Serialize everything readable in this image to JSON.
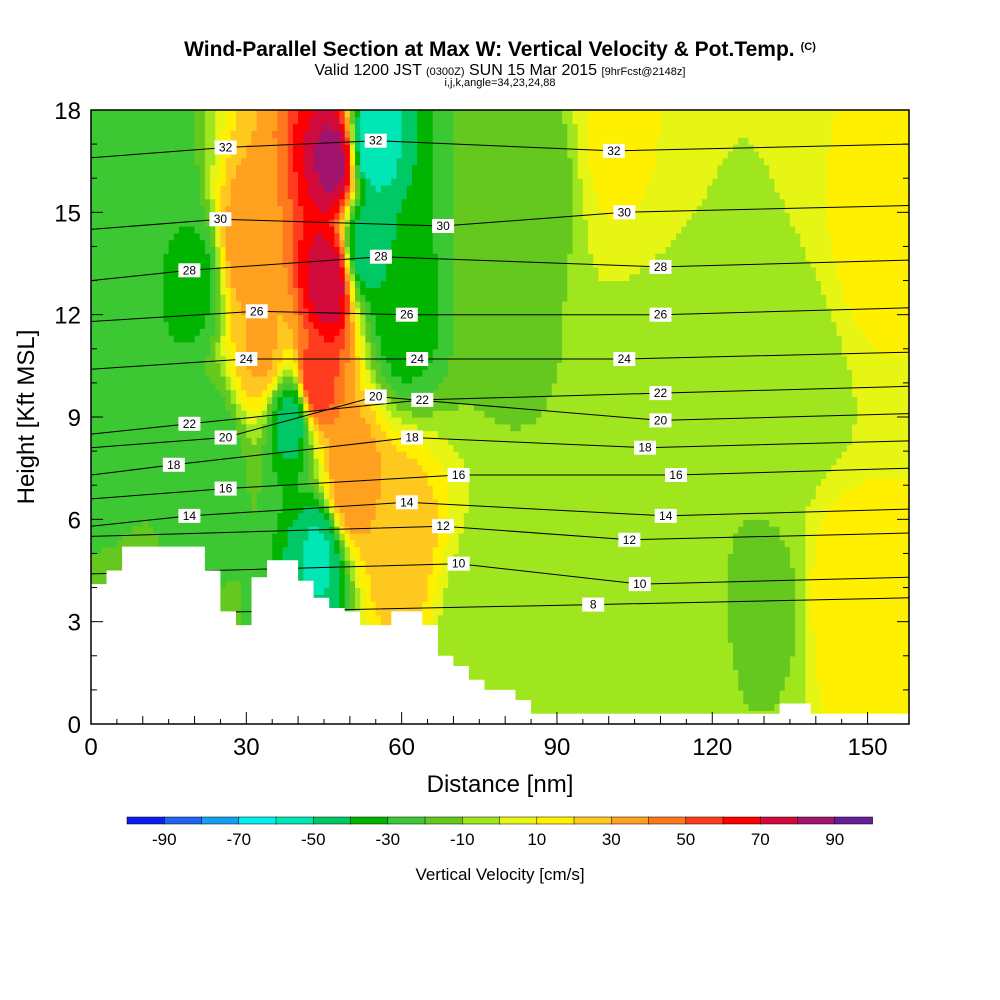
{
  "header": {
    "title": "Wind-Parallel Section at Max W: Vertical Velocity & Pot.Temp.",
    "copyright": "(C)",
    "valid_prefix": "Valid 1200 JST",
    "valid_utc": "(0300Z)",
    "valid_date": "SUN 15 Mar 2015",
    "forecast": "[9hrFcst@2148z]",
    "indices": "i,j,k,angle=34,23,24,88"
  },
  "chart_data": {
    "type": "heatmap",
    "xlabel": "Distance [nm]",
    "ylabel": "Height [Kft MSL]",
    "xlim": [
      0,
      158
    ],
    "ylim": [
      0,
      18
    ],
    "x_ticks": [
      0,
      30,
      60,
      90,
      120,
      150
    ],
    "y_ticks": [
      0,
      3,
      6,
      9,
      12,
      15,
      18
    ],
    "colorbar": {
      "label": "Vertical Velocity [cm/s]",
      "tick_labels": [
        "-90",
        "-70",
        "-50",
        "-30",
        "-10",
        "10",
        "30",
        "50",
        "70",
        "90"
      ],
      "levels": [
        -100,
        -90,
        -80,
        -70,
        -60,
        -50,
        -40,
        -30,
        -20,
        -10,
        0,
        10,
        20,
        30,
        40,
        50,
        60,
        70,
        80,
        90,
        100
      ],
      "colors": [
        "#0a1ef0",
        "#1e64f0",
        "#14a0f0",
        "#00f0f0",
        "#00e6b4",
        "#00c864",
        "#00b400",
        "#3cc832",
        "#64c81e",
        "#a0e61e",
        "#e6f514",
        "#fff000",
        "#ffc81e",
        "#ffa01e",
        "#ff781e",
        "#ff3c1e",
        "#ff0000",
        "#d20a3c",
        "#a0146e",
        "#641e96"
      ]
    },
    "velocity_features": [
      {
        "x": 46,
        "y": 13,
        "value": 80
      },
      {
        "x": 47,
        "y": 16.5,
        "value": 85
      },
      {
        "x": 43,
        "y": 10,
        "value": 60
      },
      {
        "x": 50,
        "y": 7,
        "value": 40
      },
      {
        "x": 59,
        "y": 5.5,
        "value": 28
      },
      {
        "x": 30,
        "y": 14,
        "value": 38
      },
      {
        "x": 33,
        "y": 11,
        "value": 32
      },
      {
        "x": 100,
        "y": 17,
        "value": 12
      },
      {
        "x": 150,
        "y": 14,
        "value": 12
      },
      {
        "x": 145,
        "y": 3.5,
        "value": 18
      },
      {
        "x": 54,
        "y": 17,
        "value": -60
      },
      {
        "x": 53,
        "y": 14,
        "value": -50
      },
      {
        "x": 39,
        "y": 9,
        "value": -48
      },
      {
        "x": 44,
        "y": 5,
        "value": -52
      },
      {
        "x": 60,
        "y": 12,
        "value": -36
      },
      {
        "x": 20,
        "y": 13,
        "value": -34
      },
      {
        "x": 24,
        "y": 8,
        "value": -26
      },
      {
        "x": 3,
        "y": 10,
        "value": -22
      },
      {
        "x": 13,
        "y": 16,
        "value": -28
      },
      {
        "x": 88,
        "y": 16,
        "value": -14
      },
      {
        "x": 80,
        "y": 12.5,
        "value": -12
      },
      {
        "x": 108,
        "y": 9,
        "value": -10
      },
      {
        "x": 137,
        "y": 10,
        "value": -8
      },
      {
        "x": 132,
        "y": 3.3,
        "value": -12
      },
      {
        "x": 114,
        "y": 1,
        "value": -8
      },
      {
        "x": 90,
        "y": 1.5,
        "value": -6
      },
      {
        "x": 75,
        "y": 2.5,
        "value": -8
      }
    ],
    "isentrope_labels": [
      {
        "text": "32",
        "x": 26,
        "y": 16.9
      },
      {
        "text": "30",
        "x": 25,
        "y": 14.8
      },
      {
        "text": "28",
        "x": 19,
        "y": 13.3
      },
      {
        "text": "26",
        "x": 32,
        "y": 12.1
      },
      {
        "text": "24",
        "x": 30,
        "y": 10.7
      },
      {
        "text": "22",
        "x": 19,
        "y": 8.8
      },
      {
        "text": "20",
        "x": 26,
        "y": 8.4
      },
      {
        "text": "18",
        "x": 16,
        "y": 7.6
      },
      {
        "text": "16",
        "x": 26,
        "y": 6.9
      },
      {
        "text": "14",
        "x": 19,
        "y": 6.1
      },
      {
        "text": "32",
        "x": 55,
        "y": 17.1
      },
      {
        "text": "28",
        "x": 56,
        "y": 13.7
      },
      {
        "text": "26",
        "x": 61,
        "y": 12.0
      },
      {
        "text": "24",
        "x": 63,
        "y": 10.7
      },
      {
        "text": "22",
        "x": 64,
        "y": 9.5
      },
      {
        "text": "20",
        "x": 55,
        "y": 9.6
      },
      {
        "text": "18",
        "x": 62,
        "y": 8.4
      },
      {
        "text": "30",
        "x": 68,
        "y": 14.6
      },
      {
        "text": "16",
        "x": 71,
        "y": 7.3
      },
      {
        "text": "14",
        "x": 61,
        "y": 6.5
      },
      {
        "text": "12",
        "x": 68,
        "y": 5.8
      },
      {
        "text": "10",
        "x": 71,
        "y": 4.7
      },
      {
        "text": "32",
        "x": 101,
        "y": 16.8
      },
      {
        "text": "30",
        "x": 103,
        "y": 15.0
      },
      {
        "text": "28",
        "x": 110,
        "y": 13.4
      },
      {
        "text": "26",
        "x": 110,
        "y": 12.0
      },
      {
        "text": "24",
        "x": 103,
        "y": 10.7
      },
      {
        "text": "22",
        "x": 110,
        "y": 9.7
      },
      {
        "text": "20",
        "x": 110,
        "y": 8.9
      },
      {
        "text": "18",
        "x": 107,
        "y": 8.1
      },
      {
        "text": "16",
        "x": 113,
        "y": 7.3
      },
      {
        "text": "14",
        "x": 111,
        "y": 6.1
      },
      {
        "text": "12",
        "x": 104,
        "y": 5.4
      },
      {
        "text": "10",
        "x": 106,
        "y": 4.1
      },
      {
        "text": "8",
        "x": 97,
        "y": 3.5
      }
    ],
    "terrain_profile": [
      [
        0,
        4.1
      ],
      [
        3,
        4.1
      ],
      [
        3,
        4.5
      ],
      [
        6,
        4.5
      ],
      [
        6,
        5.2
      ],
      [
        22,
        5.2
      ],
      [
        22,
        4.5
      ],
      [
        25,
        4.5
      ],
      [
        25,
        3.3
      ],
      [
        28,
        3.3
      ],
      [
        28,
        2.9
      ],
      [
        31,
        2.9
      ],
      [
        31,
        4.3
      ],
      [
        34,
        4.3
      ],
      [
        34,
        4.8
      ],
      [
        40,
        4.8
      ],
      [
        40,
        4.2
      ],
      [
        43,
        4.2
      ],
      [
        43,
        3.7
      ],
      [
        46,
        3.7
      ],
      [
        46,
        3.4
      ],
      [
        49,
        3.4
      ],
      [
        49,
        3.3
      ],
      [
        52,
        3.3
      ],
      [
        52,
        2.9
      ],
      [
        58,
        2.9
      ],
      [
        58,
        3.3
      ],
      [
        64,
        3.3
      ],
      [
        64,
        2.9
      ],
      [
        67,
        2.9
      ],
      [
        67,
        2.0
      ],
      [
        70,
        2.0
      ],
      [
        70,
        1.7
      ],
      [
        73,
        1.7
      ],
      [
        73,
        1.3
      ],
      [
        76,
        1.3
      ],
      [
        76,
        1.0
      ],
      [
        82,
        1.0
      ],
      [
        82,
        0.7
      ],
      [
        85,
        0.7
      ],
      [
        85,
        0.3
      ],
      [
        133,
        0.3
      ],
      [
        133,
        0.6
      ],
      [
        139,
        0.6
      ],
      [
        139,
        0.3
      ],
      [
        158,
        0.3
      ]
    ]
  }
}
